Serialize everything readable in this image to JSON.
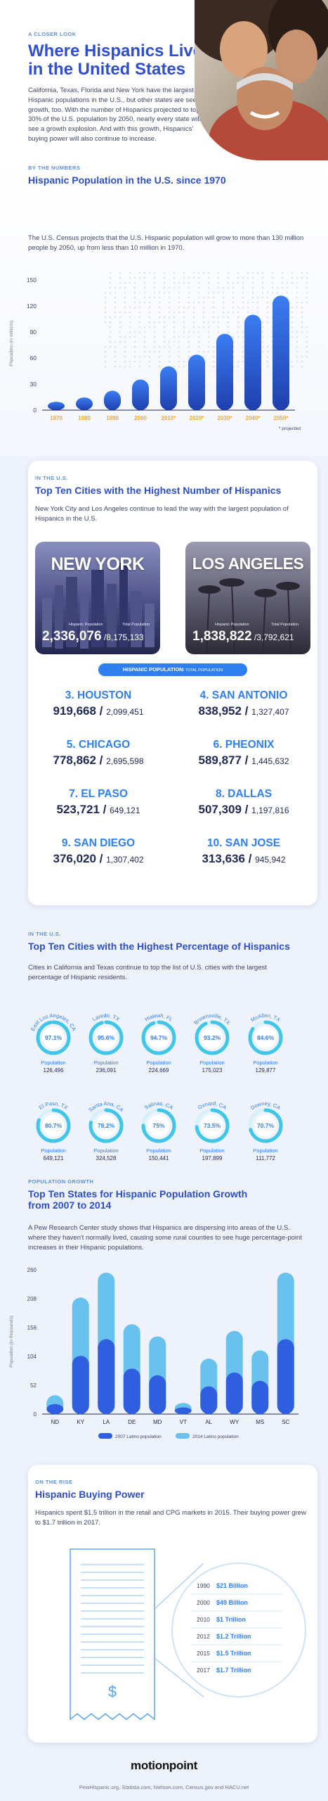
{
  "hero": {
    "kicker": "A CLOSER LOOK",
    "title_line1": "Where Hispanics Live",
    "title_line2": "in the United States",
    "body": "California, Texas, Florida and New York have the largest Hispanic populations in the U.S., but other states are seeing growth, too. With the number of Hispanics projected to top 30% of the U.S. population by 2050, nearly every state will see a growth explosion. And with this growth, Hispanics' buying power will also continue to increase."
  },
  "population": {
    "kicker": "BY THE NUMBERS",
    "title": "Hispanic Population in the U.S. since 1970",
    "body": "The U.S. Census projects that the U.S. Hispanic population will grow to more than 130 million people by 2050, up from less than 10 million in 1970.",
    "projected_note": "* projected"
  },
  "chart_data": [
    {
      "type": "bar",
      "title": "Hispanic Population in the U.S. since 1970",
      "ylabel": "Population (in millions)",
      "ylim": [
        0,
        150
      ],
      "yticks": [
        "0",
        "30",
        "60",
        "90",
        "120",
        "150"
      ],
      "categories": [
        "1970",
        "1980",
        "1990",
        "2000",
        "2010*",
        "2020*",
        "2030*",
        "2040*",
        "2050*"
      ],
      "values": [
        9.6,
        14.6,
        22.4,
        35.3,
        50.5,
        64,
        88,
        110,
        132
      ],
      "colors": [
        "#1f3fae",
        "#3b7df2"
      ]
    },
    {
      "type": "bar",
      "title": "Top Ten States for Hispanic Population Growth from 2007 to 2014",
      "ylabel": "Population (in thousands)",
      "ylim": [
        0,
        260
      ],
      "yticks": [
        "0",
        "52",
        "104",
        "156",
        "208",
        "260"
      ],
      "categories": [
        "ND",
        "KY",
        "LA",
        "DE",
        "MD",
        "VT",
        "AL",
        "WY",
        "MS",
        "SC"
      ],
      "series": [
        {
          "name": "2007 Latino population",
          "values": [
            18,
            105,
            135,
            82,
            70,
            12,
            50,
            75,
            60,
            135
          ],
          "color": "#2f5fe0"
        },
        {
          "name": "2014 Latino population",
          "values": [
            34,
            210,
            255,
            162,
            140,
            20,
            100,
            150,
            115,
            255
          ],
          "color": "#69c2ee"
        }
      ]
    }
  ],
  "count": {
    "kicker": "IN THE U.S.",
    "title": "Top Ten Cities with the Highest Number of Hispanics",
    "body": "New York City and Los Angeles continue to lead the way with the largest population of Hispanics in the U.S.",
    "pill": "HISPANIC POPULATION",
    "pill_small": "/ TOTAL POPULATION",
    "hisp_label": "Hispanic Population",
    "total_label": "Total Population",
    "featured": [
      {
        "name": "NEW YORK",
        "hisp": "2,336,076",
        "total": "8,175,133"
      },
      {
        "name": "LOS ANGELES",
        "hisp": "1,838,822",
        "total": "3,792,621"
      }
    ],
    "cities": [
      {
        "name": "3. HOUSTON",
        "hisp": "919,668",
        "total": "2,099,451"
      },
      {
        "name": "4. SAN ANTONIO",
        "hisp": "838,952",
        "total": "1,327,407"
      },
      {
        "name": "5. CHICAGO",
        "hisp": "778,862",
        "total": "2,695,598"
      },
      {
        "name": "6. PHEONIX",
        "hisp": "589,877",
        "total": "1,445,632"
      },
      {
        "name": "7. EL PASO",
        "hisp": "523,721",
        "total": "649,121"
      },
      {
        "name": "8. DALLAS",
        "hisp": "507,309",
        "total": "1,197,816"
      },
      {
        "name": "9. SAN DIEGO",
        "hisp": "376,020",
        "total": "1,307,402"
      },
      {
        "name": "10. SAN JOSE",
        "hisp": "313,636",
        "total": "945,942"
      }
    ]
  },
  "percentage": {
    "kicker": "IN THE U.S.",
    "title": "Top Ten Cities with the Highest Percentage of Hispanics",
    "body": "Cities in California and Texas continue to top the list of U.S. cities with the largest percentage of Hispanic residents.",
    "pop_label": "Population",
    "cities": [
      {
        "name": "East Los Angeles, CA",
        "pct": "97.1%",
        "value": 97.1,
        "pop": "126,496"
      },
      {
        "name": "Laredo, TX",
        "pct": "95.6%",
        "value": 95.6,
        "pop": "236,091"
      },
      {
        "name": "Hialeah, FL",
        "pct": "94.7%",
        "value": 94.7,
        "pop": "224,669"
      },
      {
        "name": "Brownsville, TX",
        "pct": "93.2%",
        "value": 93.2,
        "pop": "175,023"
      },
      {
        "name": "McAllen, TX",
        "pct": "84.6%",
        "value": 84.6,
        "pop": "129,877"
      },
      {
        "name": "El Paso, TX",
        "pct": "80.7%",
        "value": 80.7,
        "pop": "649,121"
      },
      {
        "name": "Santa Ana, CA",
        "pct": "78.2%",
        "value": 78.2,
        "pop": "324,528"
      },
      {
        "name": "Salinas, CA",
        "pct": "75%",
        "value": 75,
        "pop": "150,441"
      },
      {
        "name": "Oxnard, CA",
        "pct": "73.5%",
        "value": 73.5,
        "pop": "197,899"
      },
      {
        "name": "Downey, CA",
        "pct": "70.7%",
        "value": 70.7,
        "pop": "111,772"
      }
    ],
    "ring_color": "#3fc6e8"
  },
  "growth": {
    "kicker": "POPULATION GROWTH",
    "title": "Top Ten States for Hispanic Population Growth from 2007 to 2014",
    "body": "A Pew Research Center study shows that Hispanics are dispersing into areas of the U.S. where they haven't normally lived, causing some rural counties to see huge percentage-point increases in their Hispanic populations."
  },
  "buying": {
    "kicker": "ON THE RISE",
    "title": "Hispanic Buying Power",
    "body": "Hispanics spent $1.5 trillion in the retail and CPG markets in 2015. Their buying power grew to $1.7 trillion in 2017.",
    "rows": [
      {
        "year": "1990",
        "value": "$21 Billion"
      },
      {
        "year": "2000",
        "value": "$49 Billion"
      },
      {
        "year": "2010",
        "value": "$1 Trillion"
      },
      {
        "year": "2012",
        "value": "$1.2 Trillion"
      },
      {
        "year": "2015",
        "value": "$1.5 Trillion"
      },
      {
        "year": "2017",
        "value": "$1.7 Trillion"
      }
    ],
    "receipt_symbol": "$"
  },
  "footer": {
    "logo": "motionpoint",
    "sources": "PewHispanic.org, Statista.com, Nielson.com, Census.gov and HACU.net"
  }
}
